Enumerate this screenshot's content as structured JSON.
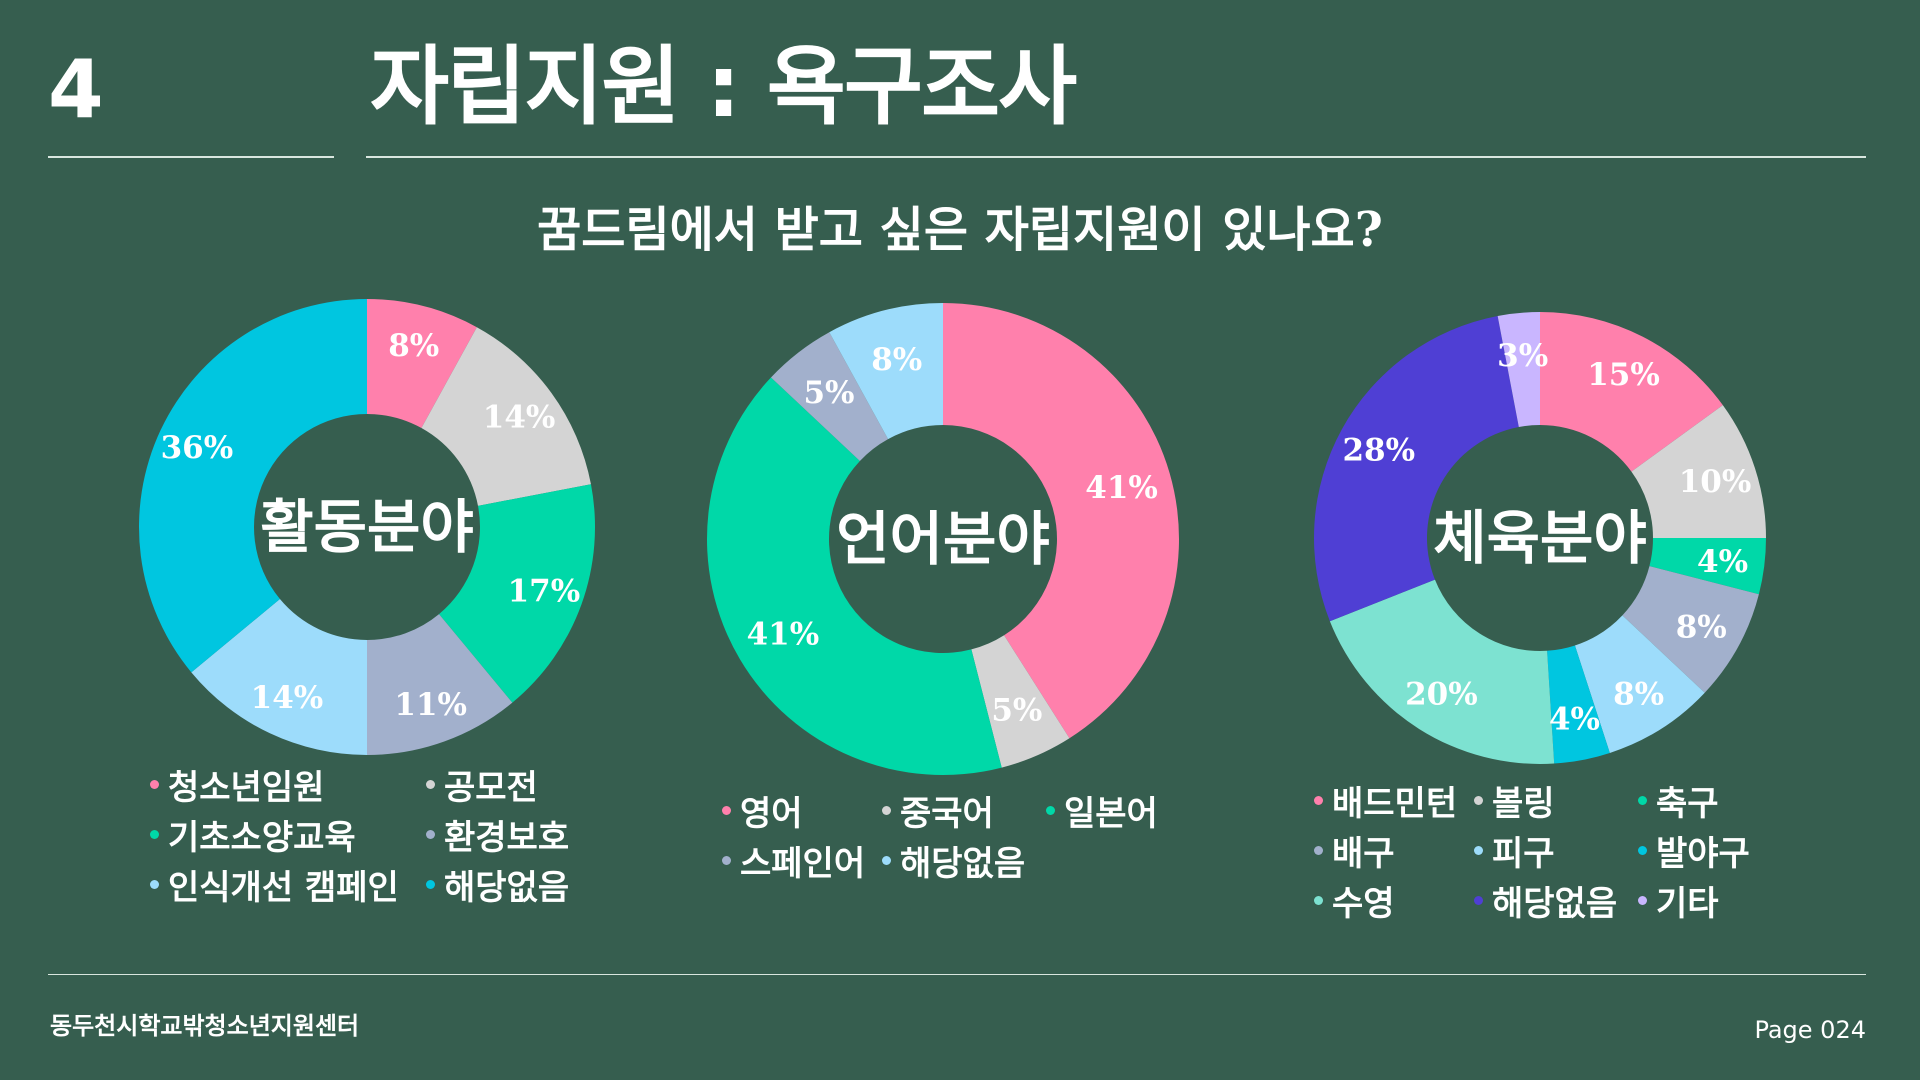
{
  "header": {
    "section_number": "4",
    "title": "자립지원 : 욕구조사"
  },
  "question": "꿈드림에서 받고 싶은 자립지원이 있나요?",
  "chart_data": [
    {
      "type": "pie",
      "center_label": "활동분야",
      "series": [
        {
          "name": "청소년임원",
          "value": 8,
          "label": "8%",
          "color": "#ff80ac"
        },
        {
          "name": "공모전",
          "value": 14,
          "label": "14%",
          "color": "#d4d4d4"
        },
        {
          "name": "기초소양교육",
          "value": 17,
          "label": "17%",
          "color": "#00d8a8"
        },
        {
          "name": "환경보호",
          "value": 11,
          "label": "11%",
          "color": "#a2b0cc"
        },
        {
          "name": "인식개선 캠페인",
          "value": 14,
          "label": "14%",
          "color": "#9ddcfb"
        },
        {
          "name": "해당없음",
          "value": 36,
          "label": "36%",
          "color": "#00c6e0"
        }
      ]
    },
    {
      "type": "pie",
      "center_label": "언어분야",
      "series": [
        {
          "name": "영어",
          "value": 41,
          "label": "41%",
          "color": "#ff80ac"
        },
        {
          "name": "중국어",
          "value": 5,
          "label": "5%",
          "color": "#d4d4d4"
        },
        {
          "name": "일본어",
          "value": 41,
          "label": "41%",
          "color": "#00d8a8"
        },
        {
          "name": "스페인어",
          "value": 5,
          "label": "5%",
          "color": "#a2b0cc"
        },
        {
          "name": "해당없음",
          "value": 8,
          "label": "8%",
          "color": "#9ddcfb"
        }
      ]
    },
    {
      "type": "pie",
      "center_label": "체육분야",
      "series": [
        {
          "name": "배드민턴",
          "value": 15,
          "label": "15%",
          "color": "#ff80ac"
        },
        {
          "name": "볼링",
          "value": 10,
          "label": "10%",
          "color": "#d4d4d4"
        },
        {
          "name": "축구",
          "value": 4,
          "label": "4%",
          "color": "#00d8a8"
        },
        {
          "name": "배구",
          "value": 8,
          "label": "8%",
          "color": "#a2b0cc"
        },
        {
          "name": "피구",
          "value": 8,
          "label": "8%",
          "color": "#9ddcfb"
        },
        {
          "name": "발야구",
          "value": 4,
          "label": "4%",
          "color": "#00c6e0"
        },
        {
          "name": "수영",
          "value": 20,
          "label": "20%",
          "color": "#7de2d1"
        },
        {
          "name": "해당없음",
          "value": 28,
          "label": "28%",
          "color": "#4f3fd4"
        },
        {
          "name": "기타",
          "value": 3,
          "label": "3%",
          "color": "#c9b6ff"
        }
      ]
    }
  ],
  "footer": {
    "organization": "동두천시학교밖청소년지원센터",
    "page": "Page 024"
  }
}
